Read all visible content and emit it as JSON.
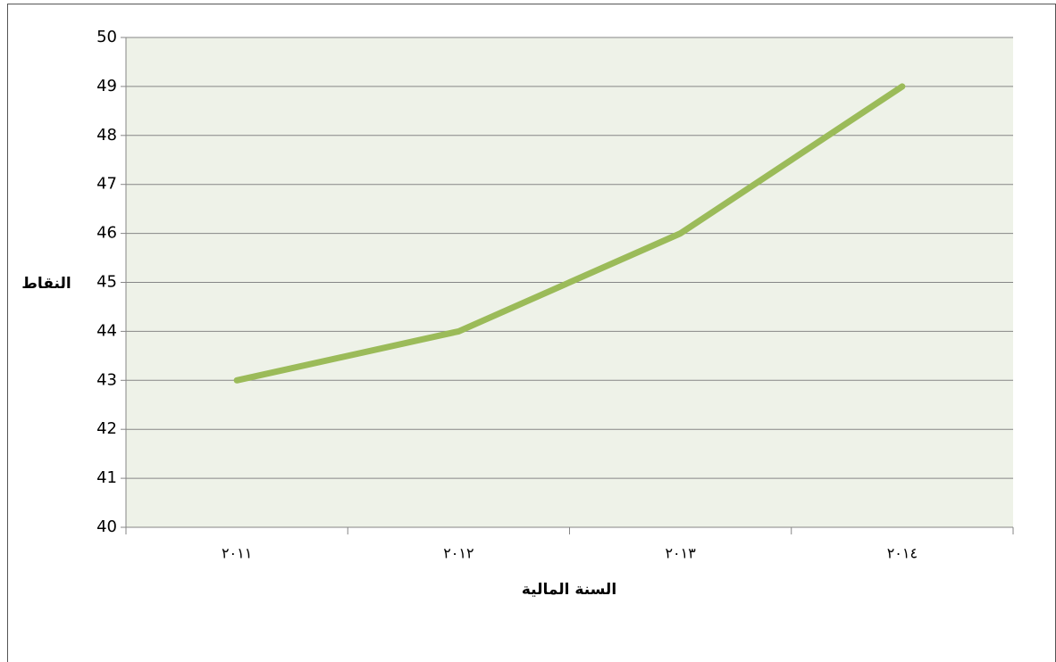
{
  "chart_data": {
    "type": "line",
    "categories": [
      "٢٠١١",
      "٢٠١٢",
      "٢٠١٣",
      "٢٠١٤"
    ],
    "series": [
      {
        "name": "النقاط",
        "color": "#9bbb59",
        "values": [
          43,
          44,
          46,
          49
        ]
      }
    ],
    "ylim": [
      40,
      50
    ],
    "yticks": [
      40,
      41,
      42,
      43,
      44,
      45,
      46,
      47,
      48,
      49,
      50
    ],
    "x_label": "السنة المالية",
    "y_label": "النقاط",
    "grid": true
  }
}
